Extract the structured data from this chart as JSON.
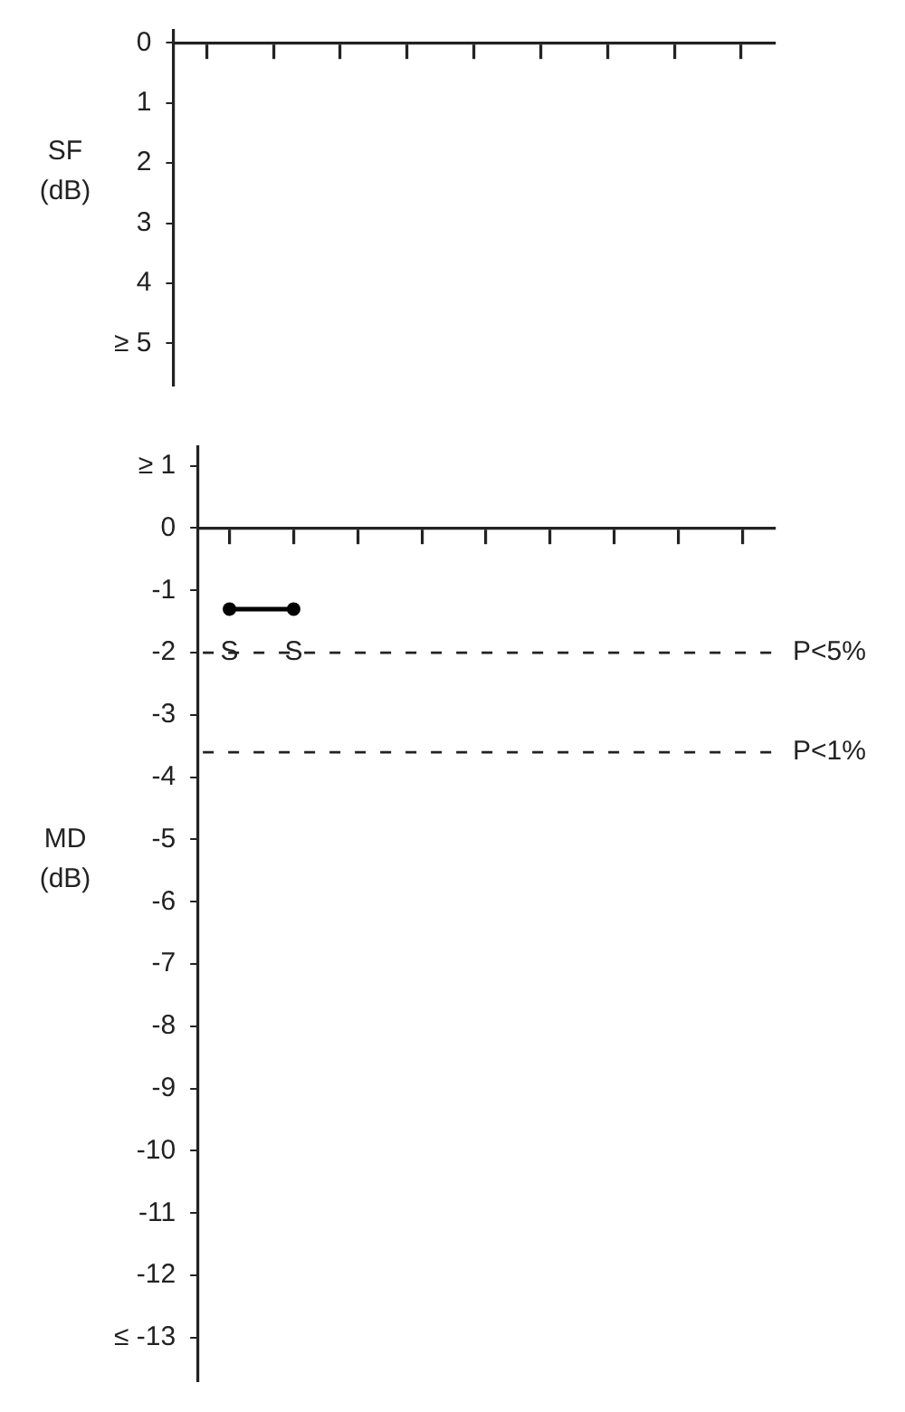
{
  "chart_data": [
    {
      "type": "line",
      "ylabel": "SF (dB)",
      "categories": [
        null,
        null,
        null,
        null,
        null,
        null,
        null,
        null,
        null
      ],
      "values": [
        null,
        null,
        null,
        null,
        null,
        null,
        null,
        null,
        null
      ],
      "color": "#000000",
      "ylim": [
        5.7,
        -0.2
      ],
      "yticks": [
        0,
        1,
        2,
        3,
        4,
        {
          "value": 5,
          "label": "≥ 5"
        }
      ],
      "tick_labels": "y"
    },
    {
      "type": "line",
      "ylabel": "MD (dB)",
      "categories": [
        null,
        null,
        null,
        null,
        null,
        null,
        null,
        null,
        null
      ],
      "values": [
        -1.3,
        -1.3,
        null,
        null,
        null,
        null,
        null,
        null,
        null
      ],
      "color": "#000000",
      "marker": "circle",
      "ylim": [
        -13.7,
        1.3
      ],
      "yticks": [
        {
          "value": 1,
          "label": "≥ 1"
        },
        0,
        -1,
        -2,
        -3,
        -4,
        -5,
        -6,
        -7,
        -8,
        -9,
        -10,
        -11,
        -12,
        {
          "value": -13,
          "label": "≤ -13"
        }
      ],
      "tick_labels": "y",
      "ref_lines": [
        {
          "axis": "y",
          "value": -2,
          "label": "P<5%",
          "line_style": "dashed"
        },
        {
          "axis": "y",
          "value": -3.6,
          "label": "P<1%",
          "line_style": "dashed"
        }
      ],
      "annotations": [
        {
          "text": "S",
          "y": -2
        },
        {
          "text": "S",
          "y": -2
        }
      ]
    }
  ]
}
